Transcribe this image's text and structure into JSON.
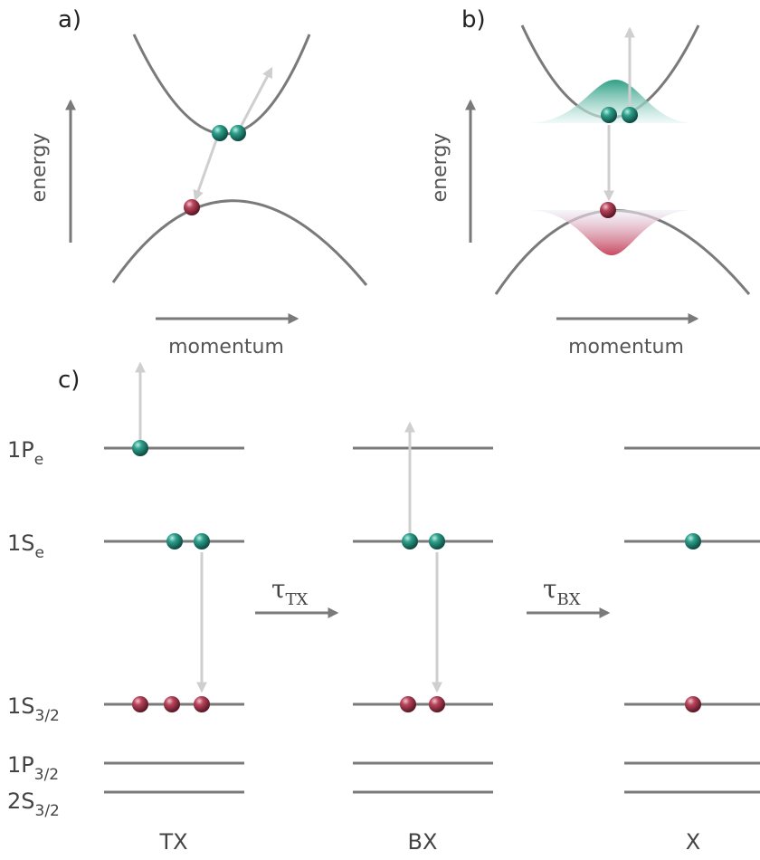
{
  "panel_a": {
    "label": "a)",
    "y_axis": "energy",
    "x_axis": "momentum"
  },
  "panel_b": {
    "label": "b)",
    "y_axis": "energy",
    "x_axis": "momentum"
  },
  "panel_c": {
    "label": "c)",
    "levels": [
      {
        "main": "1P",
        "sub": "e"
      },
      {
        "main": "1S",
        "sub": "e"
      },
      {
        "main": "1S",
        "sub": "3/2"
      },
      {
        "main": "1P",
        "sub": "3/2"
      },
      {
        "main": "2S",
        "sub": "3/2"
      }
    ],
    "transitions": [
      {
        "main": "τ",
        "sub": "TX"
      },
      {
        "main": "τ",
        "sub": "BX"
      }
    ],
    "states": [
      "TX",
      "BX",
      "X"
    ]
  }
}
